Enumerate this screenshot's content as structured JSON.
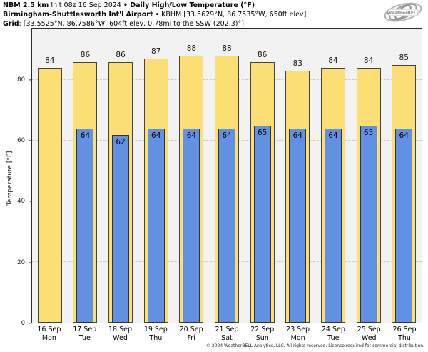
{
  "header": {
    "line1_bold_a": "NBM 2.5 km",
    "line1_regular": " Init 08z 16 Sep 2024 ",
    "line1_bold_b": "• Daily High/Low Temperature (°F)",
    "line2_bold": "Birmingham-Shuttlesworth Int'l Airport",
    "line2_regular": " • KBHM [33.5629°N, 86.7535°W, 650ft elev]",
    "line3_bold": "Grid",
    "line3_regular": ": [33.5525°N, 86.7586°W, 604ft elev, 0.78mi to the SSW (202.3)°]"
  },
  "logo": {
    "brand": "WeatherBELL"
  },
  "footer": {
    "copyright": "© 2024 WeatherBELL Analytics, LLC. All rights reserved. License required for commercial distribution."
  },
  "colors": {
    "high_bar": "#FBDE74",
    "low_bar": "#6191E2",
    "bar_border": "#44443c",
    "plot_bg": "#f2f2f2",
    "gridline": "#c9c9c9"
  },
  "chart_data": {
    "type": "bar",
    "title": "NBM 2.5 km Daily High/Low Temperature (°F) — KBHM",
    "xlabel": "",
    "ylabel": "Temperature [°F]",
    "ylim": [
      0,
      97
    ],
    "yticks": [
      0,
      20,
      40,
      60,
      80
    ],
    "grid": "dashed horizontal at yticks",
    "legend": "none",
    "categories": [
      "16 Sep Mon",
      "17 Sep Tue",
      "18 Sep Wed",
      "19 Sep Thu",
      "20 Sep Fri",
      "21 Sep Sat",
      "22 Sep Sun",
      "23 Sep Mon",
      "24 Sep Tue",
      "25 Sep Wed",
      "26 Sep Thu"
    ],
    "series": [
      {
        "name": "Daily High",
        "values": [
          84,
          86,
          86,
          87,
          88,
          88,
          86,
          83,
          84,
          84,
          85
        ]
      },
      {
        "name": "Daily Low",
        "values": [
          null,
          64,
          62,
          64,
          64,
          64,
          65,
          64,
          64,
          65,
          64
        ]
      }
    ],
    "days": [
      {
        "date": "16 Sep",
        "dow": "Mon",
        "high": 84,
        "low": null
      },
      {
        "date": "17 Sep",
        "dow": "Tue",
        "high": 86,
        "low": 64
      },
      {
        "date": "18 Sep",
        "dow": "Wed",
        "high": 86,
        "low": 62
      },
      {
        "date": "19 Sep",
        "dow": "Thu",
        "high": 87,
        "low": 64
      },
      {
        "date": "20 Sep",
        "dow": "Fri",
        "high": 88,
        "low": 64
      },
      {
        "date": "21 Sep",
        "dow": "Sat",
        "high": 88,
        "low": 64
      },
      {
        "date": "22 Sep",
        "dow": "Sun",
        "high": 86,
        "low": 65
      },
      {
        "date": "23 Sep",
        "dow": "Mon",
        "high": 83,
        "low": 64
      },
      {
        "date": "24 Sep",
        "dow": "Tue",
        "high": 84,
        "low": 64
      },
      {
        "date": "25 Sep",
        "dow": "Wed",
        "high": 84,
        "low": 65
      },
      {
        "date": "26 Sep",
        "dow": "Thu",
        "high": 85,
        "low": 64
      }
    ]
  }
}
